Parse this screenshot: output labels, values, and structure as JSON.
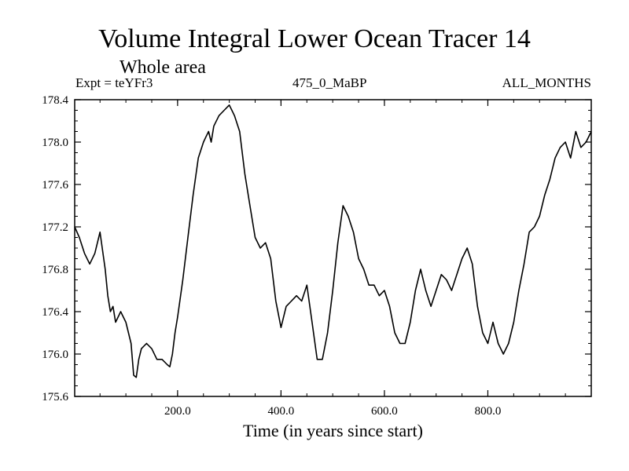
{
  "chart_data": {
    "type": "line",
    "title": "Volume Integral Lower Ocean Tracer 14",
    "subtitle": "Whole area",
    "expt_label": "Expt = teYFr3",
    "period_label": "475_0_MaBP",
    "months_label": "ALL_MONTHS",
    "xlabel": "Time (in years since start)",
    "ylabel": "",
    "xlim": [
      1,
      1000
    ],
    "ylim": [
      175.6,
      178.4
    ],
    "x_ticks": [
      200,
      400,
      600,
      800
    ],
    "x_tick_labels": [
      "200.0",
      "400.0",
      "600.0",
      "800.0"
    ],
    "y_ticks": [
      175.6,
      176.0,
      176.4,
      176.8,
      177.2,
      177.6,
      178.0,
      178.4
    ],
    "y_tick_labels": [
      "175.6",
      "176.0",
      "176.4",
      "176.8",
      "177.2",
      "177.6",
      "178.0",
      "178.4"
    ],
    "series": [
      {
        "name": "Tracer 14",
        "x": [
          1,
          10,
          20,
          30,
          40,
          50,
          60,
          65,
          70,
          75,
          80,
          90,
          100,
          110,
          115,
          120,
          125,
          130,
          140,
          150,
          160,
          170,
          180,
          185,
          190,
          195,
          200,
          210,
          220,
          230,
          240,
          250,
          255,
          260,
          265,
          270,
          280,
          290,
          300,
          305,
          310,
          320,
          330,
          340,
          350,
          360,
          370,
          380,
          390,
          400,
          410,
          420,
          430,
          440,
          450,
          460,
          470,
          480,
          490,
          500,
          510,
          520,
          530,
          540,
          550,
          560,
          570,
          580,
          590,
          600,
          610,
          620,
          630,
          640,
          650,
          660,
          670,
          680,
          690,
          700,
          710,
          720,
          730,
          740,
          750,
          760,
          770,
          780,
          790,
          800,
          810,
          820,
          830,
          840,
          850,
          860,
          870,
          875,
          880,
          890,
          900,
          910,
          920,
          930,
          940,
          950,
          960,
          970,
          980,
          990,
          1000
        ],
        "values": [
          177.2,
          177.1,
          176.95,
          176.85,
          176.95,
          177.15,
          176.8,
          176.55,
          176.4,
          176.45,
          176.3,
          176.4,
          176.3,
          176.1,
          175.8,
          175.78,
          175.95,
          176.05,
          176.1,
          176.05,
          175.95,
          175.95,
          175.9,
          175.88,
          176.0,
          176.2,
          176.35,
          176.7,
          177.1,
          177.5,
          177.85,
          178.0,
          178.05,
          178.1,
          178.0,
          178.15,
          178.25,
          178.3,
          178.35,
          178.3,
          178.25,
          178.1,
          177.7,
          177.4,
          177.1,
          177.0,
          177.05,
          176.9,
          176.5,
          176.25,
          176.45,
          176.5,
          176.55,
          176.5,
          176.65,
          176.3,
          175.95,
          175.95,
          176.2,
          176.6,
          177.05,
          177.4,
          177.3,
          177.15,
          176.9,
          176.8,
          176.65,
          176.65,
          176.55,
          176.6,
          176.45,
          176.2,
          176.1,
          176.1,
          176.3,
          176.6,
          176.8,
          176.6,
          176.45,
          176.6,
          176.75,
          176.7,
          176.6,
          176.75,
          176.9,
          177.0,
          176.85,
          176.45,
          176.2,
          176.1,
          176.3,
          176.1,
          176.0,
          176.1,
          176.3,
          176.6,
          176.85,
          177.0,
          177.15,
          177.2,
          177.3,
          177.5,
          177.65,
          177.85,
          177.95,
          178.0,
          177.85,
          178.1,
          177.95,
          178.0,
          178.1
        ]
      }
    ]
  }
}
